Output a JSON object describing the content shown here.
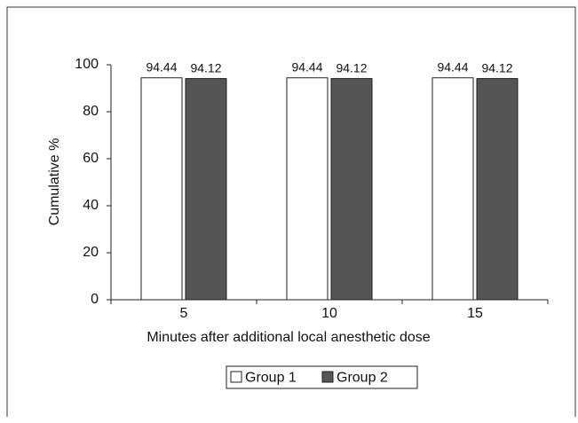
{
  "chart_data": {
    "type": "bar",
    "x_label": "Minutes after additional local anesthetic dose",
    "y_label": "Cumulative %",
    "categories": [
      "5",
      "10",
      "15"
    ],
    "series": [
      {
        "name": "Group 1",
        "color": "#ffffff",
        "values": [
          94.44,
          94.44,
          94.44
        ]
      },
      {
        "name": "Group 2",
        "color": "#555555",
        "values": [
          94.12,
          94.12,
          94.12
        ]
      }
    ],
    "ylim": [
      0,
      100
    ],
    "yticks": [
      0,
      20,
      40,
      60,
      80,
      100
    ],
    "grid": false,
    "legend": "bottom"
  }
}
